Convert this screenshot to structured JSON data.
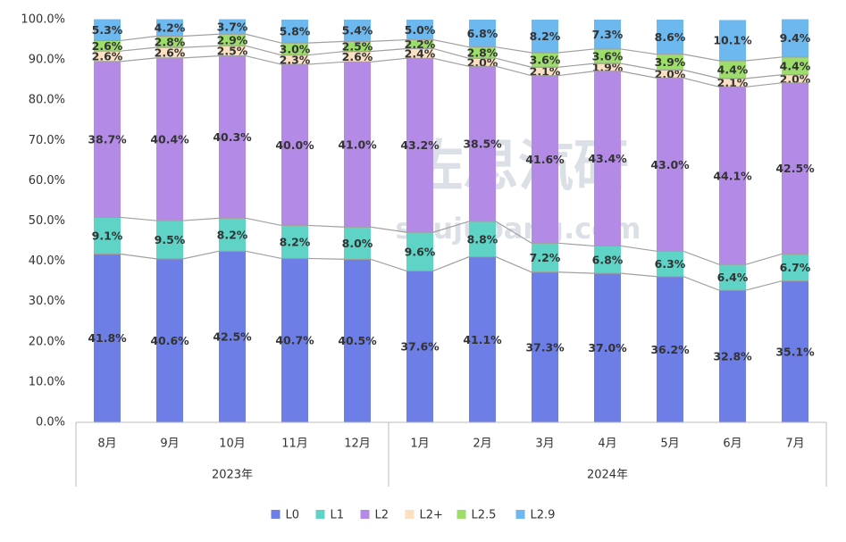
{
  "chart_data": {
    "type": "stacked_bar",
    "watermark": [
      "佐思汽研",
      "shujubang.com"
    ],
    "categories": [
      "8月",
      "9月",
      "10月",
      "11月",
      "12月",
      "1月",
      "2月",
      "3月",
      "4月",
      "5月",
      "6月",
      "7月"
    ],
    "groups": [
      {
        "label": "2023年",
        "size": 5
      },
      {
        "label": "2024年",
        "size": 7
      }
    ],
    "ylim": [
      0,
      100
    ],
    "yticks": [
      {
        "value": 0,
        "label": "0.0%"
      },
      {
        "value": 10,
        "label": "10.0%"
      },
      {
        "value": 20,
        "label": "20.0%"
      },
      {
        "value": 30,
        "label": "30.0%"
      },
      {
        "value": 40,
        "label": "40.0%"
      },
      {
        "value": 50,
        "label": "50.0%"
      },
      {
        "value": 60,
        "label": "60.0%"
      },
      {
        "value": 70,
        "label": "70.0%"
      },
      {
        "value": 80,
        "label": "80.0%"
      },
      {
        "value": 90,
        "label": "90.0%"
      },
      {
        "value": 100,
        "label": "100.0%"
      }
    ],
    "grid": false,
    "legend": "bottom",
    "series": [
      {
        "name": "L0",
        "color": "#6d7ee6",
        "values": [
          41.8,
          40.6,
          42.5,
          40.7,
          40.5,
          37.6,
          41.1,
          37.3,
          37.0,
          36.2,
          32.8,
          35.1
        ],
        "value_labels": [
          "41.8%",
          "40.6%",
          "42.5%",
          "40.7%",
          "40.5%",
          "37.6%",
          "41.1%",
          "37.3%",
          "37.0%",
          "36.2%",
          "32.8%",
          "35.1%"
        ]
      },
      {
        "name": "L1",
        "color": "#5ed3c6",
        "values": [
          9.1,
          9.5,
          8.2,
          8.2,
          8.0,
          9.6,
          8.8,
          7.2,
          6.8,
          6.3,
          6.4,
          6.7
        ],
        "value_labels": [
          "9.1%",
          "9.5%",
          "8.2%",
          "8.2%",
          "8.0%",
          "9.6%",
          "8.8%",
          "7.2%",
          "6.8%",
          "6.3%",
          "6.4%",
          "6.7%"
        ]
      },
      {
        "name": "L2",
        "color": "#b38ae6",
        "values": [
          38.7,
          40.4,
          40.3,
          40.0,
          41.0,
          43.2,
          38.5,
          41.6,
          43.4,
          43.0,
          44.1,
          42.5
        ],
        "value_labels": [
          "38.7%",
          "40.4%",
          "40.3%",
          "40.0%",
          "41.0%",
          "43.2%",
          "38.5%",
          "41.6%",
          "43.4%",
          "43.0%",
          "44.1%",
          "42.5%"
        ]
      },
      {
        "name": "L2+",
        "color": "#fbe0c2",
        "values": [
          2.6,
          2.6,
          2.5,
          2.3,
          2.6,
          2.4,
          2.0,
          2.1,
          1.9,
          2.0,
          2.1,
          2.0
        ],
        "value_labels": [
          "2.6%",
          "2.6%",
          "2.5%",
          "2.3%",
          "2.6%",
          "2.4%",
          "2.0%",
          "2.1%",
          "1.9%",
          "2.0%",
          "2.1%",
          "2.0%"
        ]
      },
      {
        "name": "L2.5",
        "color": "#9ddd6c",
        "values": [
          2.6,
          2.8,
          2.9,
          3.0,
          2.5,
          2.2,
          2.8,
          3.6,
          3.6,
          3.9,
          4.4,
          4.4
        ],
        "value_labels": [
          "2.6%",
          "2.8%",
          "2.9%",
          "3.0%",
          "2.5%",
          "2.2%",
          "2.8%",
          "3.6%",
          "3.6%",
          "3.9%",
          "4.4%",
          "4.4%"
        ]
      },
      {
        "name": "L2.9",
        "color": "#6cb8ef",
        "values": [
          5.3,
          4.2,
          3.7,
          5.8,
          5.4,
          5.0,
          6.8,
          8.2,
          7.3,
          8.6,
          10.1,
          9.4
        ],
        "value_labels": [
          "5.3%",
          "4.2%",
          "3.7%",
          "5.8%",
          "5.4%",
          "5.0%",
          "6.8%",
          "8.2%",
          "7.3%",
          "8.6%",
          "10.1%",
          "9.4%"
        ]
      }
    ]
  }
}
